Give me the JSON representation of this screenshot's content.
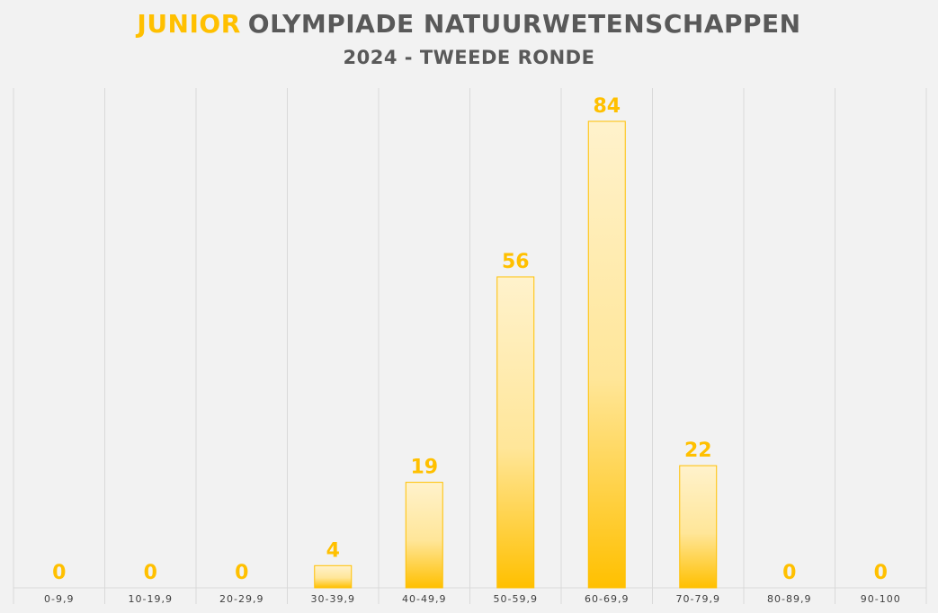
{
  "chart_data": {
    "type": "bar",
    "title_accent": "JUNIOR",
    "title_main": "OLYMPIADE NATUURWETENSCHAPPEN",
    "subtitle": "2024 - TWEEDE RONDE",
    "categories": [
      "0-9,9",
      "10-19,9",
      "20-29,9",
      "30-39,9",
      "40-49,9",
      "50-59,9",
      "60-69,9",
      "70-79,9",
      "80-89,9",
      "90-100"
    ],
    "values": [
      0,
      0,
      0,
      4,
      19,
      56,
      84,
      22,
      0,
      0
    ],
    "ylim": [
      0,
      84
    ],
    "grid": "vertical",
    "legend": "none",
    "colors": {
      "bar_top": "#fff2cc",
      "bar_bottom": "#ffc000",
      "bar_border": "#ffc000",
      "label": "#ffc000",
      "title": "#595959",
      "axis_text": "#404040",
      "grid": "#d9d9d9",
      "background": "#f2f2f2"
    }
  }
}
